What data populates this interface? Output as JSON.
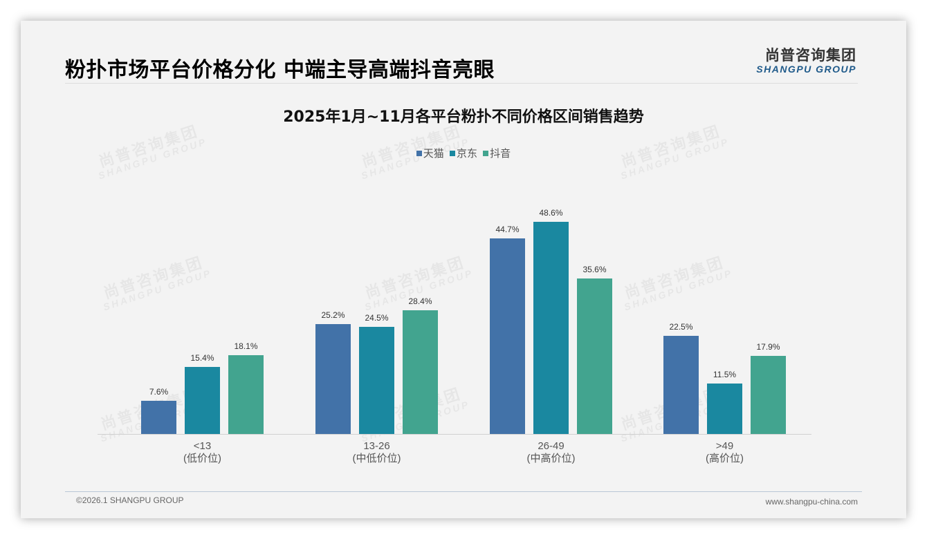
{
  "header": {
    "title": "粉扑市场平台价格分化 中端主导高端抖音亮眼",
    "logo_cn": "尚普咨询集团",
    "logo_en": "SHANGPU GROUP"
  },
  "watermark": {
    "cn": "尚普咨询集团",
    "en": "SHANGPU GROUP"
  },
  "footer": {
    "copyright": "©2026.1 SHANGPU GROUP",
    "website": "www.shangpu-china.com"
  },
  "colors": {
    "tmall": "#4272a8",
    "jd": "#1a88a0",
    "douyin": "#42a48f"
  },
  "legend": [
    {
      "label": "天猫",
      "color": "#4272a8"
    },
    {
      "label": "京东",
      "color": "#1a88a0"
    },
    {
      "label": "抖音",
      "color": "#42a48f"
    }
  ],
  "chart_data": {
    "type": "bar",
    "title": "2025年1月~11月各平台粉扑不同价格区间销售趋势",
    "xlabel": "",
    "ylabel": "",
    "categories": [
      "<13",
      "13-26",
      "26-49",
      ">49"
    ],
    "category_sublabels": [
      "(低价位)",
      "(中低价位)",
      "(中高价位)",
      "(高价位)"
    ],
    "series": [
      {
        "name": "天猫",
        "values": [
          7.6,
          25.2,
          44.7,
          22.5
        ],
        "labels": [
          "7.6%",
          "25.2%",
          "44.7%",
          "22.5%"
        ]
      },
      {
        "name": "京东",
        "values": [
          15.4,
          24.5,
          48.6,
          11.5
        ],
        "labels": [
          "15.4%",
          "24.5%",
          "48.6%",
          "11.5%"
        ]
      },
      {
        "name": "抖音",
        "values": [
          18.1,
          28.4,
          35.6,
          17.9
        ],
        "labels": [
          "18.1%",
          "28.4%",
          "35.6%",
          "17.9%"
        ]
      }
    ],
    "unit": "%",
    "grid": false,
    "legend_position": "top",
    "ylim": [
      0,
      50
    ]
  }
}
